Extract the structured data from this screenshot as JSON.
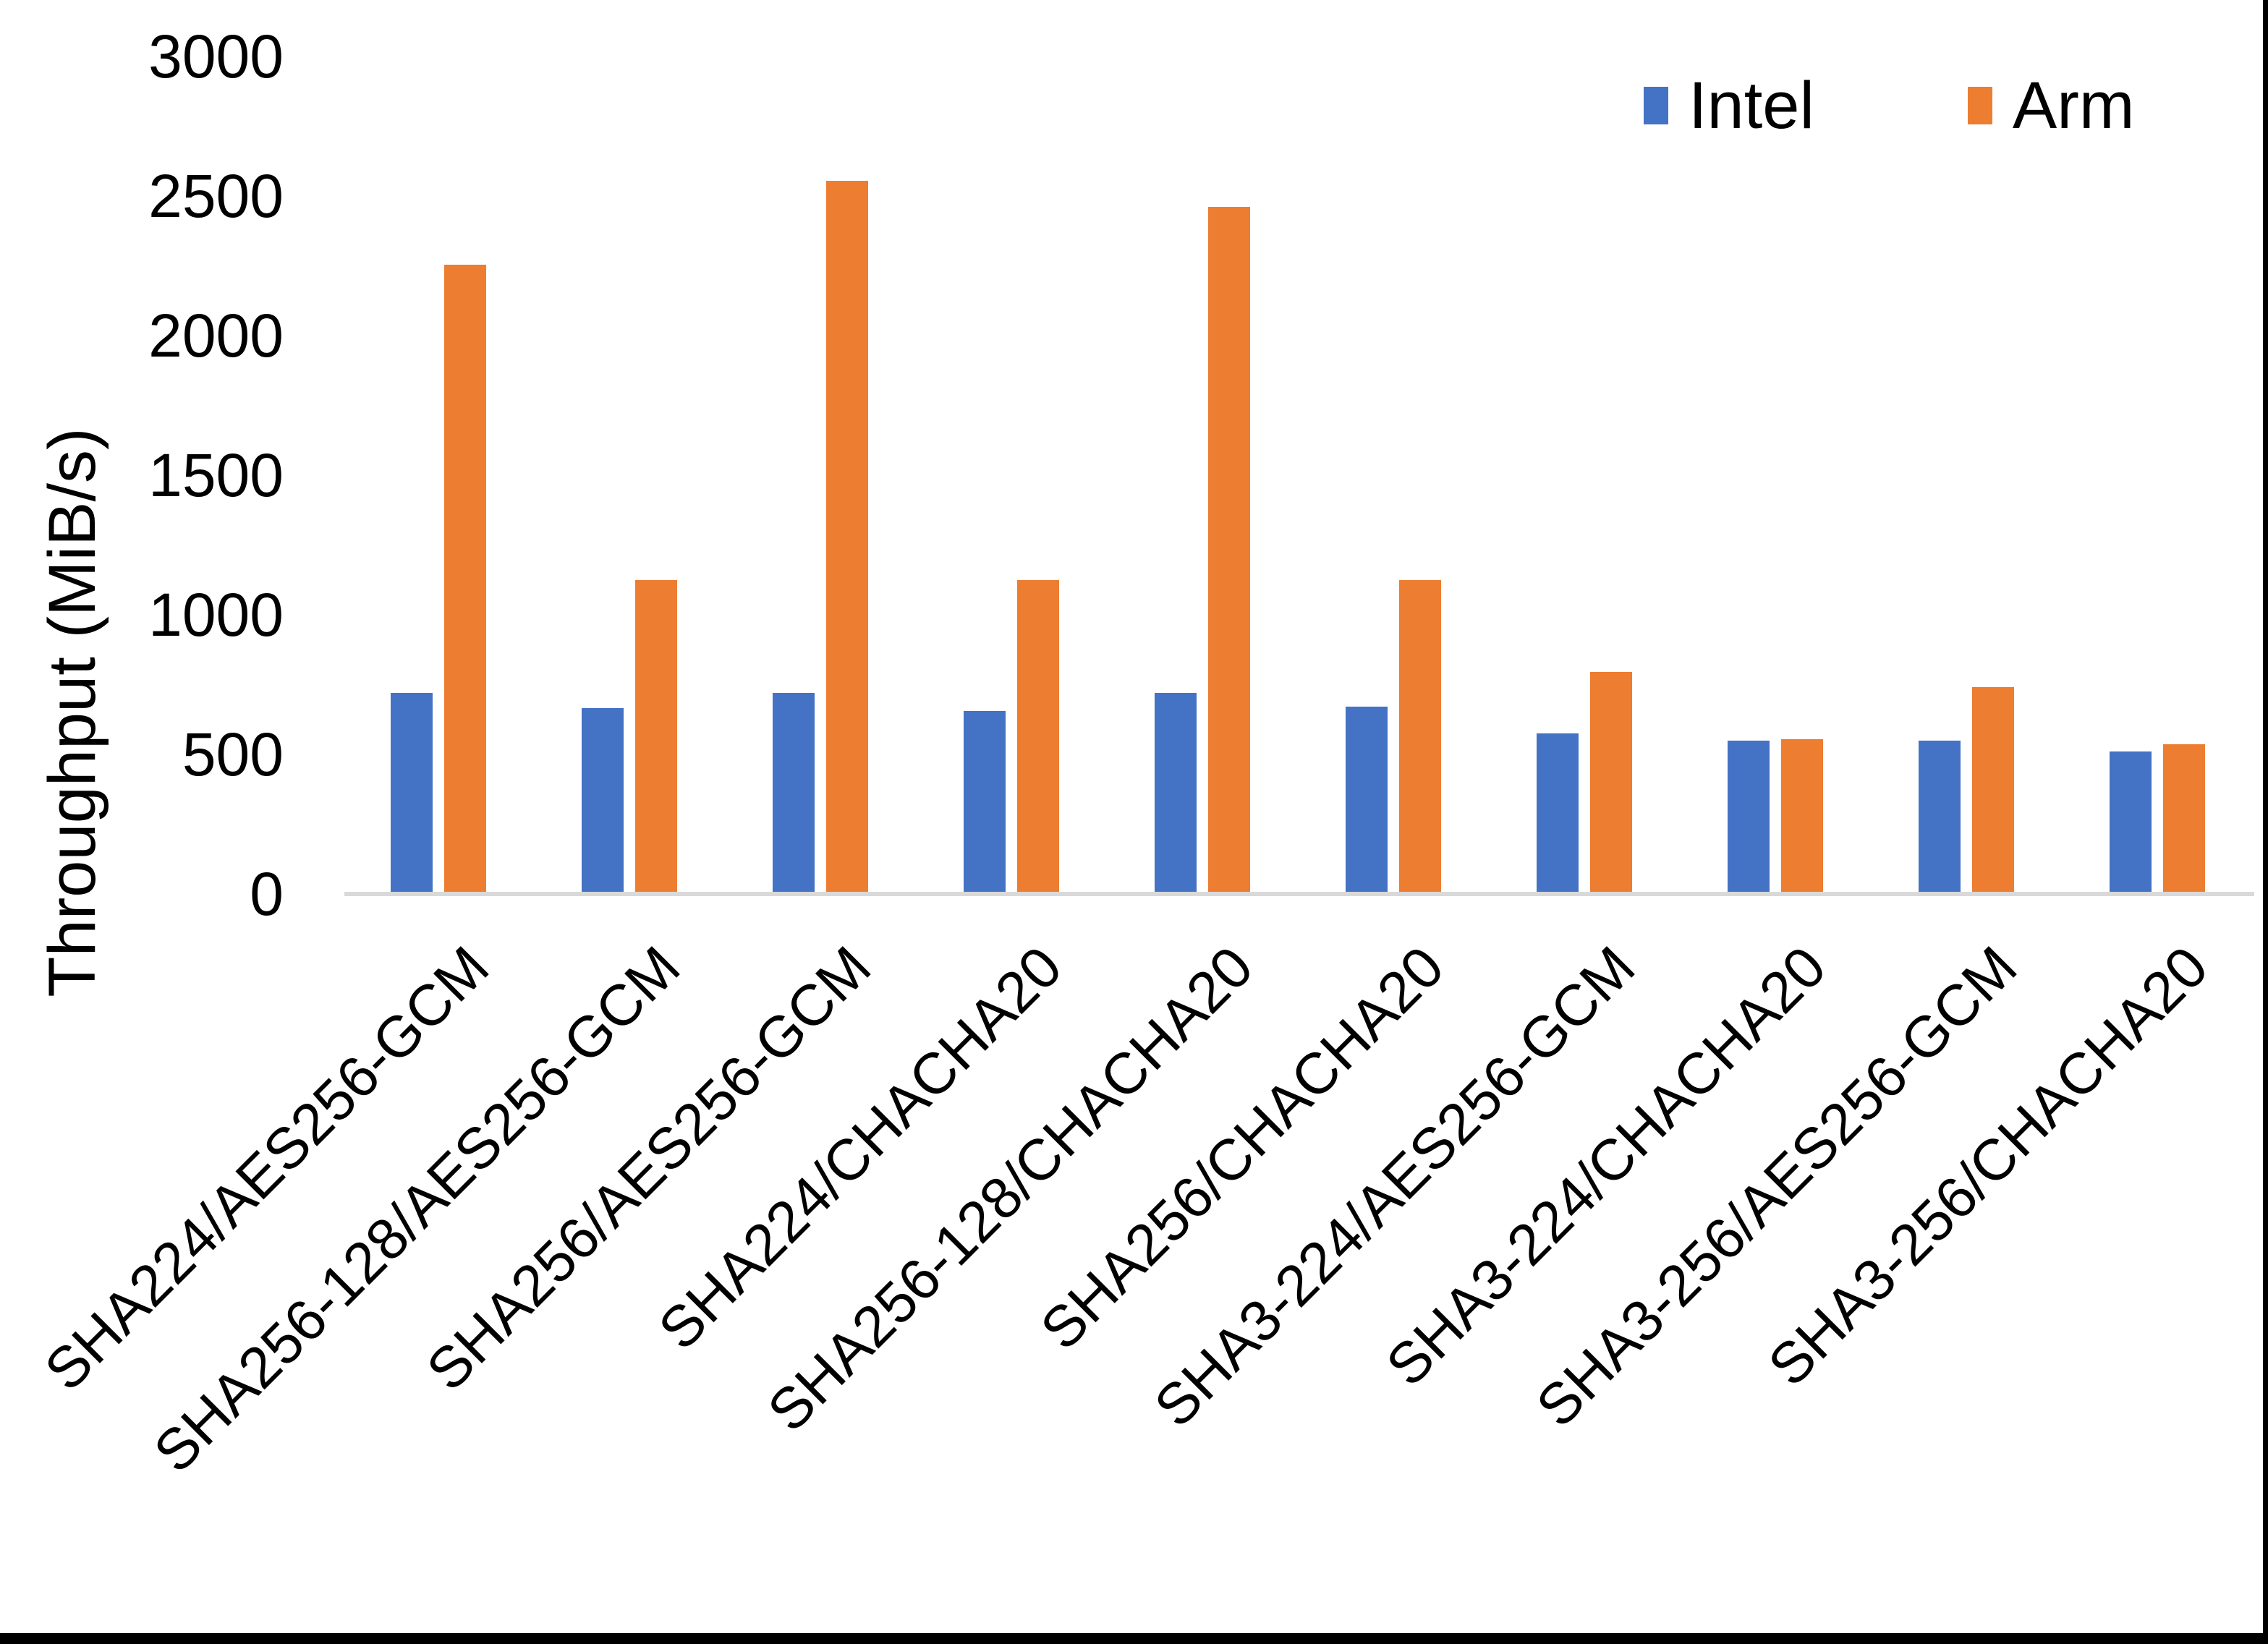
{
  "chart_data": {
    "type": "bar",
    "title": "",
    "xlabel": "",
    "ylabel": "Throughput (MiB/s)",
    "ylim": [
      0,
      3000
    ],
    "yticks": [
      0,
      500,
      1000,
      1500,
      2000,
      2500,
      3000
    ],
    "grid": false,
    "legend_position": "top-right",
    "axis_line_color": "#D9D9D9",
    "category_label_rotation_deg": -45,
    "categories": [
      "SHA224/AES256-GCM",
      "SHA256-128/AES256-GCM",
      "SHA256/AES256-GCM",
      "SHA224/CHACHA20",
      "SHA256-128/CHACHA20",
      "SHA256/CHACHA20",
      "SHA3-224/AES256-GCM",
      "SHA3-224/CHACHA20",
      "SHA3-256/AES256-GCM",
      "SHA3-256/CHACHA20"
    ],
    "series": [
      {
        "name": "Intel",
        "color": "#4472C4",
        "values": [
          720,
          665,
          720,
          655,
          720,
          670,
          575,
          550,
          550,
          510
        ]
      },
      {
        "name": "Arm",
        "color": "#ED7D31",
        "values": [
          2255,
          1125,
          2555,
          1125,
          2460,
          1125,
          795,
          555,
          740,
          535
        ]
      }
    ]
  },
  "frame": {
    "border_color": "#000000",
    "background": "#FFFFFF"
  }
}
